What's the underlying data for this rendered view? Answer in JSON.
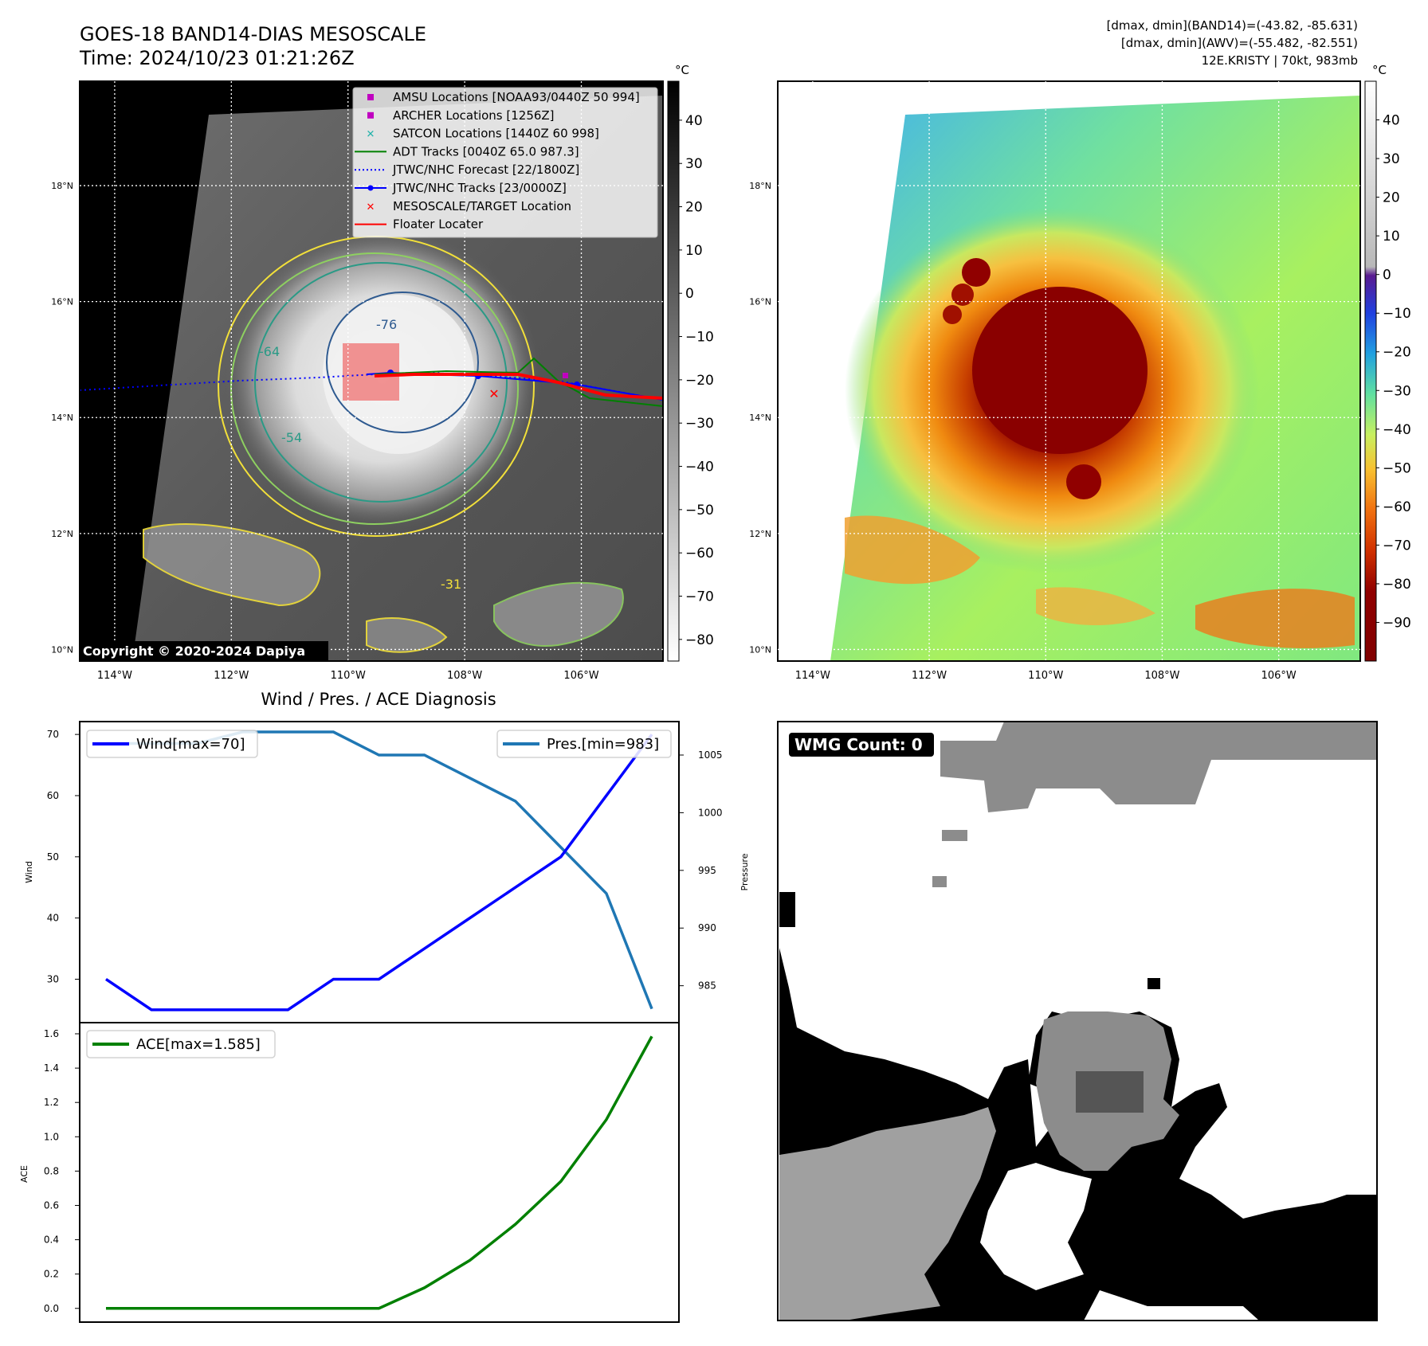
{
  "header": {
    "title": "GOES-18 BAND14-DIAS MESOSCALE",
    "time": "Time: 2024/10/23 01:21:26Z",
    "info_line1": "[dmax, dmin](BAND14)=(-43.82, -85.631)",
    "info_line2": "[dmax, dmin](AWV)=(-55.482, -82.551)",
    "info_line3": "12E.KRISTY | 70kt, 983mb"
  },
  "map": {
    "lat_labels": [
      "18°N",
      "16°N",
      "14°N",
      "12°N",
      "10°N"
    ],
    "lat_values": [
      18,
      16,
      14,
      12,
      10
    ],
    "lon_labels": [
      "114°W",
      "112°W",
      "110°W",
      "108°W",
      "106°W"
    ],
    "lon_values": [
      -114,
      -112,
      -110,
      -108,
      -106
    ],
    "copyright": "Copyright © 2020-2024 Dapiya",
    "contour_labels": [
      "-76",
      "-64",
      "-54",
      "-31"
    ],
    "legend": [
      {
        "label": "AMSU Locations [NOAA93/0440Z 50 994]",
        "color": "#c000c0",
        "marker": "square"
      },
      {
        "label": "ARCHER Locations [1256Z]",
        "color": "#c000c0",
        "marker": "square"
      },
      {
        "label": "SATCON Locations [1440Z 60 998]",
        "color": "#20b2aa",
        "marker": "x"
      },
      {
        "label": "ADT Tracks [0040Z 65.0 987.3]",
        "color": "#008000",
        "marker": "line"
      },
      {
        "label": "JTWC/NHC Forecast [22/1800Z]",
        "color": "#0000ff",
        "marker": "dotted"
      },
      {
        "label": "JTWC/NHC Tracks [23/0000Z]",
        "color": "#0000ff",
        "marker": "line-dot"
      },
      {
        "label": "MESOSCALE/TARGET Location",
        "color": "#ff0000",
        "marker": "x"
      },
      {
        "label": "Floater Locater",
        "color": "#ff0000",
        "marker": "line"
      }
    ]
  },
  "colorbar_gray": {
    "unit": "°C",
    "ticks": [
      "40",
      "30",
      "20",
      "10",
      "0",
      "−10",
      "−20",
      "−30",
      "−40",
      "−50",
      "−60",
      "−70",
      "−80"
    ],
    "tick_values": [
      40,
      30,
      20,
      10,
      0,
      -10,
      -20,
      -30,
      -40,
      -50,
      -60,
      -70,
      -80
    ],
    "range": [
      -85,
      49
    ]
  },
  "colorbar_color": {
    "unit": "°C",
    "ticks": [
      "40",
      "30",
      "20",
      "10",
      "0",
      "−10",
      "−20",
      "−30",
      "−40",
      "−50",
      "−60",
      "−70",
      "−80",
      "−90"
    ],
    "tick_values": [
      40,
      30,
      20,
      10,
      0,
      -10,
      -20,
      -30,
      -40,
      -50,
      -60,
      -70,
      -80,
      -90
    ],
    "range": [
      -100,
      50
    ]
  },
  "wmg": {
    "label": "WMG Count: 0"
  },
  "chart_data": [
    {
      "type": "line",
      "title": "Wind / Pres. / ACE Diagnosis",
      "x": [
        0,
        1,
        2,
        3,
        4,
        5,
        6,
        7,
        8,
        9,
        10,
        11,
        12
      ],
      "series": [
        {
          "name": "Wind[max=70]",
          "axis": "left",
          "color": "#0000ff",
          "values": [
            30,
            25,
            25,
            25,
            25,
            30,
            30,
            35,
            40,
            45,
            50,
            60,
            70
          ]
        },
        {
          "name": "Pres.[min=983]",
          "axis": "right",
          "color": "#1f77b4",
          "values": [
            1006,
            1006,
            1006,
            1007,
            1007,
            1007,
            1005,
            1005,
            1003,
            1001,
            997,
            993,
            983
          ]
        }
      ],
      "ylabel": "Wind",
      "ylim": [
        22.9,
        72.1
      ],
      "yticks": [
        30,
        40,
        50,
        60,
        70
      ],
      "ylabel_right": "Pressure",
      "ylim_right": [
        981.8,
        1007.9
      ],
      "yticks_right": [
        985,
        990,
        995,
        1000,
        1005
      ]
    },
    {
      "type": "line",
      "x": [
        0,
        1,
        2,
        3,
        4,
        5,
        6,
        7,
        8,
        9,
        10,
        11,
        12
      ],
      "series": [
        {
          "name": "ACE[max=1.585]",
          "color": "#008000",
          "values": [
            0,
            0,
            0,
            0,
            0,
            0,
            0,
            0.12,
            0.28,
            0.49,
            0.74,
            1.1,
            1.585
          ]
        }
      ],
      "ylabel": "ACE",
      "ylim": [
        -0.08,
        1.665
      ],
      "yticks": [
        0.0,
        0.2,
        0.4,
        0.6,
        0.8,
        1.0,
        1.2,
        1.4,
        1.6
      ]
    }
  ]
}
